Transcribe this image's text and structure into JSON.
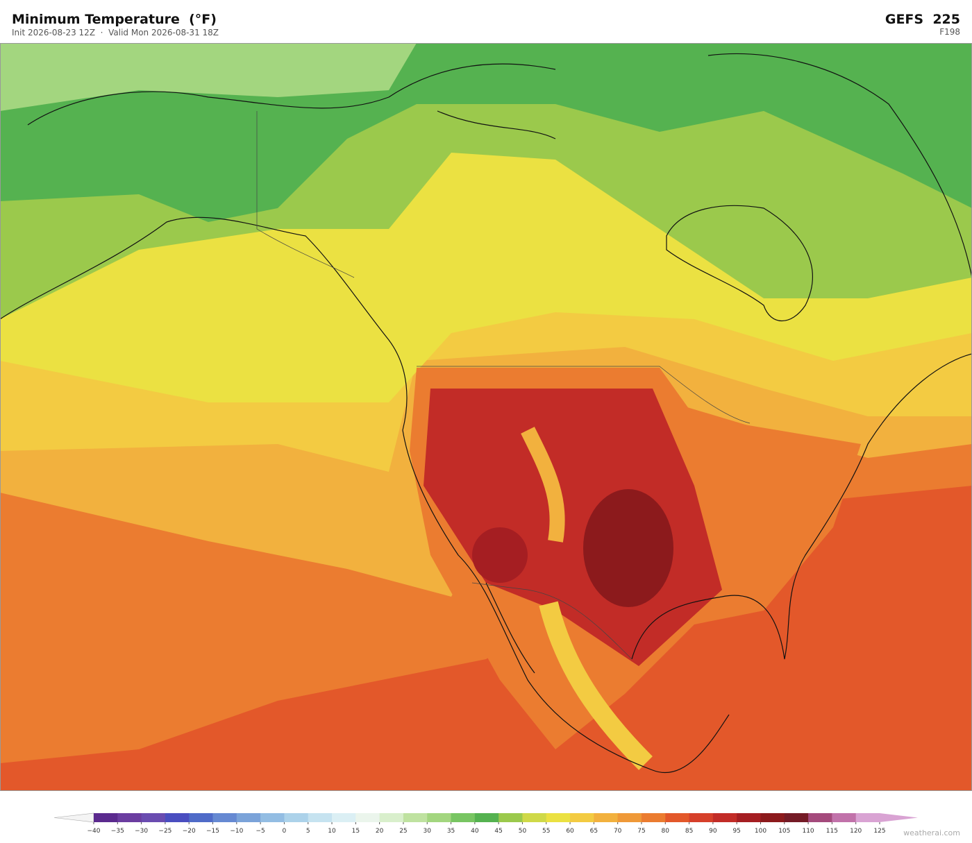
{
  "header": {
    "title": "Minimum Temperature  (°F)",
    "subtitle": "Init 2026-08-23 12Z  ·  Valid Mon 2026-08-31 18Z",
    "model": "GEFS  225",
    "forecast_hour": "F198"
  },
  "colorbar": {
    "ticks": [
      {
        "value": -40,
        "label": "−40"
      },
      {
        "value": -35,
        "label": "−35"
      },
      {
        "value": -30,
        "label": "−30"
      },
      {
        "value": -25,
        "label": "−25"
      },
      {
        "value": -20,
        "label": "−20"
      },
      {
        "value": -15,
        "label": "−15"
      },
      {
        "value": -10,
        "label": "−10"
      },
      {
        "value": -5,
        "label": "−5"
      },
      0,
      5,
      10,
      15,
      20,
      25,
      30,
      35,
      40,
      45,
      50,
      55,
      60,
      65,
      70,
      75,
      80,
      85,
      90,
      95,
      100,
      105,
      110,
      115,
      120,
      125
    ],
    "colors": [
      "#5b2a8e",
      "#6b3da0",
      "#6a4cb0",
      "#4a4ec0",
      "#4f6bc8",
      "#6689d2",
      "#7ba3d9",
      "#93bde3",
      "#acd2ea",
      "#c6e3f0",
      "#dbeff4",
      "#ebf5ec",
      "#d9efcc",
      "#bfe2a0",
      "#a3d67f",
      "#78c562",
      "#55b250",
      "#9bc94c",
      "#cfd948",
      "#ebe142",
      "#f3cb42",
      "#f2b13e",
      "#ef9938",
      "#eb7c30",
      "#e3582a",
      "#d6402a",
      "#c22c27",
      "#a51e22",
      "#8c1a1c",
      "#741b26",
      "#a44a7c",
      "#c172aa",
      "#d9a3d3"
    ],
    "under_color": "#f4f4f4",
    "over_color": "#d9a3d3"
  },
  "footer": {
    "credit": "weatherai.com"
  }
}
